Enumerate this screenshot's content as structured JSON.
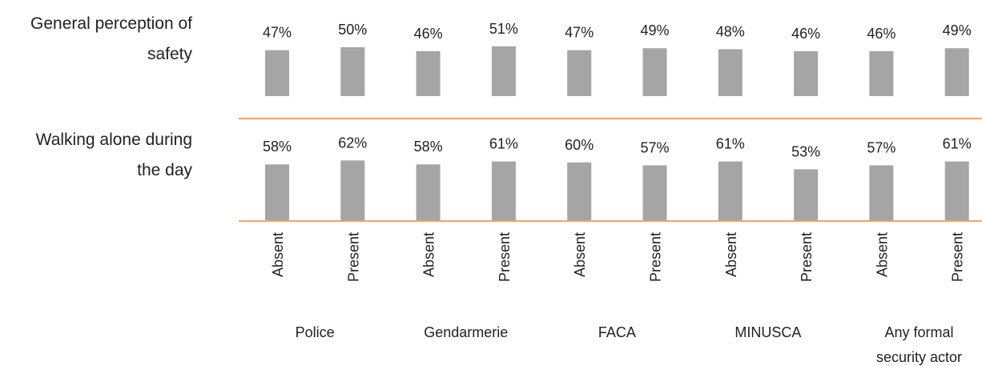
{
  "chart_data": {
    "type": "bar",
    "categories": [
      "Absent",
      "Present",
      "Absent",
      "Present",
      "Absent",
      "Present",
      "Absent",
      "Present",
      "Absent",
      "Present"
    ],
    "groups": [
      "Police",
      "Gendarmerie",
      "FACA",
      "MINUSCA",
      "Any formal security actor"
    ],
    "color": "#a5a5a5",
    "axis_color": "#f4a460",
    "ylim": [
      0,
      100
    ],
    "series": [
      {
        "name": "General perception of safety",
        "values": [
          47,
          50,
          46,
          51,
          47,
          49,
          48,
          46,
          46,
          49
        ],
        "value_labels": [
          "47%",
          "50%",
          "46%",
          "51%",
          "47%",
          "49%",
          "48%",
          "46%",
          "46%",
          "49%"
        ]
      },
      {
        "name": "Walking alone during the day",
        "values": [
          58,
          62,
          58,
          61,
          60,
          57,
          61,
          53,
          57,
          61
        ],
        "value_labels": [
          "58%",
          "62%",
          "58%",
          "61%",
          "60%",
          "57%",
          "61%",
          "53%",
          "57%",
          "61%"
        ]
      }
    ]
  }
}
